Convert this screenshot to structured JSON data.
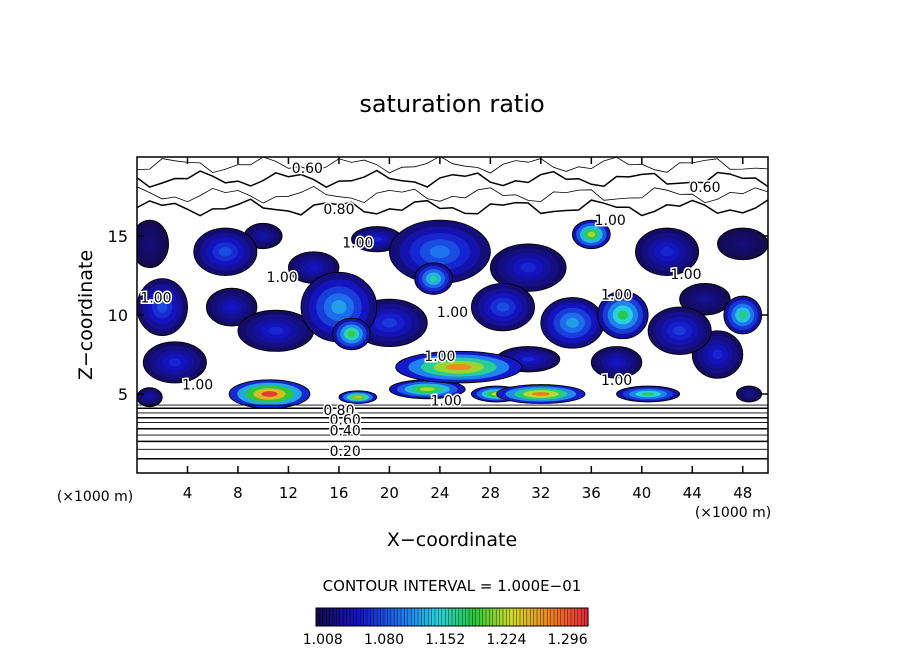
{
  "chart_data": {
    "type": "heatmap",
    "title": "saturation ratio",
    "xlabel": "X−coordinate",
    "ylabel": "Z−coordinate",
    "x_unit_left": "(×1000 m)",
    "x_unit_right": "(×1000 m)",
    "xlim": [
      0,
      50
    ],
    "ylim": [
      0,
      20
    ],
    "x_ticks": [
      4,
      8,
      12,
      16,
      20,
      24,
      28,
      32,
      36,
      40,
      44,
      48
    ],
    "y_ticks": [
      5,
      10,
      15
    ],
    "contour_interval_text": "CONTOUR INTERVAL =  1.000E−01",
    "colorbar": {
      "min": 1.0,
      "max": 1.32,
      "tick_labels": [
        "1.008",
        "1.080",
        "1.152",
        "1.224",
        "1.296"
      ]
    },
    "contour_labels": [
      {
        "text": "0.60",
        "x": 13.5,
        "z": 19.3
      },
      {
        "text": "0.60",
        "x": 45.0,
        "z": 18.1
      },
      {
        "text": "0.80",
        "x": 16.0,
        "z": 16.7
      },
      {
        "text": "1.00",
        "x": 37.5,
        "z": 16.0
      },
      {
        "text": "1.00",
        "x": 17.5,
        "z": 14.6
      },
      {
        "text": "1.00",
        "x": 11.5,
        "z": 12.4
      },
      {
        "text": "1.00",
        "x": 43.5,
        "z": 12.6
      },
      {
        "text": "1.00",
        "x": 1.5,
        "z": 11.1
      },
      {
        "text": "1.00",
        "x": 38.0,
        "z": 11.3
      },
      {
        "text": "1.00",
        "x": 25.0,
        "z": 10.2
      },
      {
        "text": "1.00",
        "x": 24.0,
        "z": 7.4
      },
      {
        "text": "1.00",
        "x": 38.0,
        "z": 5.9
      },
      {
        "text": "1.00",
        "x": 4.8,
        "z": 5.6
      },
      {
        "text": "1.00",
        "x": 24.5,
        "z": 4.6
      },
      {
        "text": "0.80",
        "x": 16.0,
        "z": 4.0
      },
      {
        "text": "0.60",
        "x": 16.5,
        "z": 3.4
      },
      {
        "text": "0.40",
        "x": 16.5,
        "z": 2.7
      },
      {
        "text": "0.20",
        "x": 16.5,
        "z": 1.4
      }
    ],
    "blobs": [
      {
        "x": 10.5,
        "z": 5.0,
        "rx": 3.2,
        "rz": 0.9,
        "v": 1.31
      },
      {
        "x": 25.5,
        "z": 6.7,
        "rx": 5.0,
        "rz": 1.0,
        "v": 1.27
      },
      {
        "x": 23.0,
        "z": 5.3,
        "rx": 3.0,
        "rz": 0.6,
        "v": 1.22
      },
      {
        "x": 32.0,
        "z": 5.0,
        "rx": 3.5,
        "rz": 0.6,
        "v": 1.28
      },
      {
        "x": 28.5,
        "z": 5.0,
        "rx": 2.0,
        "rz": 0.5,
        "v": 1.23
      },
      {
        "x": 17.5,
        "z": 4.8,
        "rx": 1.5,
        "rz": 0.4,
        "v": 1.25
      },
      {
        "x": 40.5,
        "z": 5.0,
        "rx": 2.5,
        "rz": 0.5,
        "v": 1.18
      },
      {
        "x": 36.0,
        "z": 15.1,
        "rx": 1.5,
        "rz": 0.9,
        "v": 1.22
      },
      {
        "x": 16.0,
        "z": 10.5,
        "rx": 3.0,
        "rz": 2.2,
        "v": 1.12
      },
      {
        "x": 17.0,
        "z": 8.8,
        "rx": 1.5,
        "rz": 1.0,
        "v": 1.19
      },
      {
        "x": 24.0,
        "z": 14.0,
        "rx": 4.0,
        "rz": 2.0,
        "v": 1.1
      },
      {
        "x": 23.5,
        "z": 12.3,
        "rx": 1.5,
        "rz": 1.0,
        "v": 1.16
      },
      {
        "x": 34.5,
        "z": 9.5,
        "rx": 2.5,
        "rz": 1.6,
        "v": 1.12
      },
      {
        "x": 38.5,
        "z": 10.0,
        "rx": 2.0,
        "rz": 1.5,
        "v": 1.18
      },
      {
        "x": 48.0,
        "z": 10.0,
        "rx": 1.5,
        "rz": 1.2,
        "v": 1.17
      },
      {
        "x": 2.0,
        "z": 10.5,
        "rx": 2.0,
        "rz": 1.8,
        "v": 1.08
      },
      {
        "x": 7.0,
        "z": 14.0,
        "rx": 2.5,
        "rz": 1.5,
        "v": 1.08
      },
      {
        "x": 31.0,
        "z": 13.0,
        "rx": 3.0,
        "rz": 1.5,
        "v": 1.06
      },
      {
        "x": 29.0,
        "z": 10.5,
        "rx": 2.5,
        "rz": 1.5,
        "v": 1.08
      },
      {
        "x": 11.0,
        "z": 9.0,
        "rx": 3.0,
        "rz": 1.3,
        "v": 1.06
      },
      {
        "x": 20.0,
        "z": 9.5,
        "rx": 3.0,
        "rz": 1.5,
        "v": 1.07
      },
      {
        "x": 43.0,
        "z": 9.0,
        "rx": 2.5,
        "rz": 1.5,
        "v": 1.07
      },
      {
        "x": 42.0,
        "z": 14.0,
        "rx": 2.5,
        "rz": 1.5,
        "v": 1.06
      },
      {
        "x": 3.0,
        "z": 7.0,
        "rx": 2.5,
        "rz": 1.3,
        "v": 1.06
      },
      {
        "x": 38.0,
        "z": 7.0,
        "rx": 2.0,
        "rz": 1.0,
        "v": 1.05
      },
      {
        "x": 46.0,
        "z": 7.5,
        "rx": 2.0,
        "rz": 1.5,
        "v": 1.06
      },
      {
        "x": 1.0,
        "z": 14.5,
        "rx": 1.5,
        "rz": 1.5,
        "v": 1.02
      },
      {
        "x": 48.0,
        "z": 14.5,
        "rx": 2.0,
        "rz": 1.0,
        "v": 1.02
      },
      {
        "x": 14.0,
        "z": 13.0,
        "rx": 2.0,
        "rz": 1.0,
        "v": 1.05
      },
      {
        "x": 7.5,
        "z": 10.5,
        "rx": 2.0,
        "rz": 1.2,
        "v": 1.05
      },
      {
        "x": 10.0,
        "z": 15.0,
        "rx": 1.5,
        "rz": 0.8,
        "v": 1.04
      },
      {
        "x": 31.0,
        "z": 7.2,
        "rx": 2.5,
        "rz": 0.8,
        "v": 1.06
      },
      {
        "x": 19.0,
        "z": 14.8,
        "rx": 2.0,
        "rz": 0.8,
        "v": 1.06
      },
      {
        "x": 45.0,
        "z": 11.0,
        "rx": 2.0,
        "rz": 1.0,
        "v": 1.03
      },
      {
        "x": 1.0,
        "z": 4.8,
        "rx": 1.0,
        "rz": 0.6,
        "v": 1.04
      },
      {
        "x": 48.5,
        "z": 5.0,
        "rx": 1.0,
        "rz": 0.5,
        "v": 1.03
      }
    ]
  }
}
